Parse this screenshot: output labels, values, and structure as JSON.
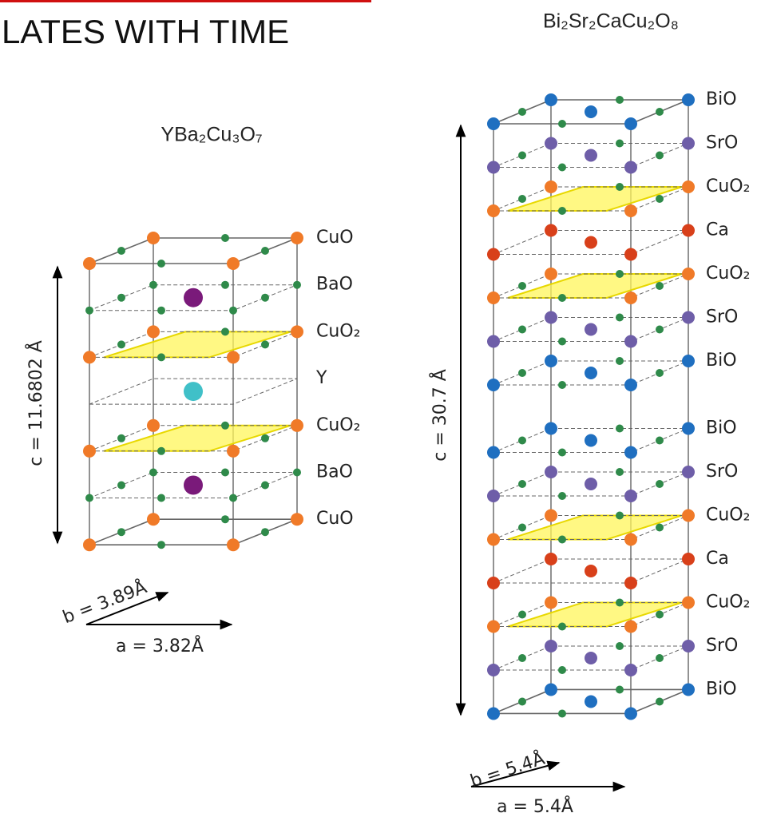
{
  "header": {
    "title": "LATES WITH TIME"
  },
  "structures": [
    {
      "formula": "YBa₂Cu₃O₇",
      "c_label": "c = 11.6802 Å",
      "b_label": "b = 3.89Å",
      "a_label": "a = 3.82Å",
      "layers": [
        "CuO",
        "BaO",
        "CuO₂",
        "Y",
        "CuO₂",
        "BaO",
        "CuO"
      ]
    },
    {
      "formula": "Bi₂Sr₂CaCu₂O₈",
      "c_label": "c = 30.7 Å",
      "b_label": "b = 5.4Å",
      "a_label": "a = 5.4Å",
      "layers": [
        "BiO",
        "SrO",
        "CuO₂",
        "Ca",
        "CuO₂",
        "SrO",
        "BiO",
        "BiO",
        "SrO",
        "CuO₂",
        "Ca",
        "CuO₂",
        "SrO",
        "BiO"
      ]
    }
  ]
}
